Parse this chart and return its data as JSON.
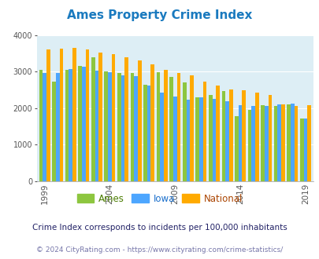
{
  "title": "Ames Property Crime Index",
  "title_color": "#1a7abf",
  "subtitle": "Crime Index corresponds to incidents per 100,000 inhabitants",
  "footer": "© 2024 CityRating.com - https://www.cityrating.com/crime-statistics/",
  "years": [
    1999,
    2000,
    2001,
    2002,
    2003,
    2004,
    2005,
    2006,
    2007,
    2008,
    2009,
    2010,
    2011,
    2012,
    2013,
    2014,
    2015,
    2016,
    2017,
    2018,
    2019
  ],
  "ames": [
    3050,
    2720,
    3050,
    3160,
    3380,
    3000,
    2970,
    2960,
    2630,
    2980,
    2850,
    2700,
    2300,
    2350,
    2470,
    1780,
    1960,
    2080,
    2060,
    2110,
    1720
  ],
  "iowa": [
    2970,
    2970,
    3060,
    3140,
    3030,
    2990,
    2890,
    2870,
    2620,
    2430,
    2310,
    2230,
    2300,
    2250,
    2190,
    2090,
    2060,
    2070,
    2100,
    2130,
    1720
  ],
  "national": [
    3610,
    3630,
    3650,
    3600,
    3510,
    3470,
    3380,
    3310,
    3200,
    3050,
    2970,
    2900,
    2720,
    2610,
    2520,
    2480,
    2420,
    2360,
    2100,
    2050,
    2090
  ],
  "ames_color": "#8dc63f",
  "iowa_color": "#4da6ff",
  "national_color": "#ffaa00",
  "plot_bg_color": "#ddeef5",
  "ylim": [
    0,
    4000
  ],
  "yticks": [
    0,
    1000,
    2000,
    3000,
    4000
  ],
  "grid_color": "#ffffff",
  "bar_width": 0.28,
  "legend_labels": [
    "Ames",
    "Iowa",
    "National"
  ],
  "legend_label_colors": [
    "#4a7c00",
    "#1a6fcc",
    "#aa4400"
  ],
  "subtitle_color": "#222266",
  "footer_color": "#7777aa",
  "xtick_years": [
    1999,
    2004,
    2009,
    2014,
    2019
  ]
}
